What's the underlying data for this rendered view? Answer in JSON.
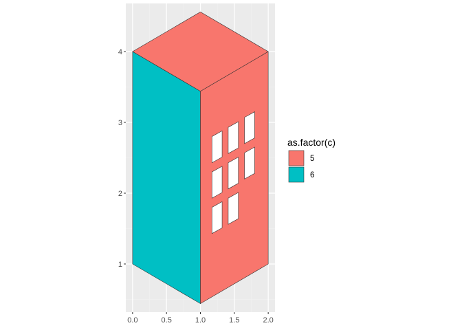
{
  "chart_data": {
    "type": "polygon",
    "title": "",
    "xlabel": "",
    "ylabel": "",
    "xlim": [
      -0.1,
      2.1
    ],
    "ylim": [
      0.32,
      4.68
    ],
    "grid": true,
    "x_ticks": [
      {
        "value": 0.0,
        "label": "0.0"
      },
      {
        "value": 0.5,
        "label": "0.5"
      },
      {
        "value": 1.0,
        "label": "1.0"
      },
      {
        "value": 1.5,
        "label": "1.5"
      },
      {
        "value": 2.0,
        "label": "2.0"
      }
    ],
    "y_ticks": [
      {
        "value": 1,
        "label": "1"
      },
      {
        "value": 2,
        "label": "2"
      },
      {
        "value": 3,
        "label": "3"
      },
      {
        "value": 4,
        "label": "4"
      }
    ],
    "legend": {
      "title": "as.factor(c)",
      "placement": "right",
      "entries": [
        {
          "label": "5",
          "color": "#F8766D"
        },
        {
          "label": "6",
          "color": "#00BFC4"
        }
      ]
    },
    "polygons": [
      {
        "group": "6",
        "fill": "#00BFC4",
        "points": [
          [
            0,
            1
          ],
          [
            0,
            4
          ],
          [
            1,
            3.44
          ],
          [
            1,
            0.44
          ]
        ]
      },
      {
        "group": "5",
        "fill": "#F8766D",
        "points": [
          [
            1,
            0.44
          ],
          [
            1,
            3.44
          ],
          [
            2,
            4
          ],
          [
            2,
            1
          ]
        ]
      },
      {
        "group": "5",
        "fill": "#F8766D",
        "points": [
          [
            0,
            4
          ],
          [
            1,
            4.56
          ],
          [
            2,
            4
          ],
          [
            1,
            3.44
          ]
        ]
      },
      {
        "group": "window",
        "fill": "#FFFFFF",
        "points": [
          [
            1.17,
            2.43
          ],
          [
            1.17,
            2.8
          ],
          [
            1.32,
            2.88
          ],
          [
            1.32,
            2.51
          ]
        ]
      },
      {
        "group": "window",
        "fill": "#FFFFFF",
        "points": [
          [
            1.41,
            2.56
          ],
          [
            1.41,
            2.93
          ],
          [
            1.56,
            3.01
          ],
          [
            1.56,
            2.64
          ]
        ]
      },
      {
        "group": "window",
        "fill": "#FFFFFF",
        "points": [
          [
            1.65,
            2.7
          ],
          [
            1.65,
            3.07
          ],
          [
            1.8,
            3.15
          ],
          [
            1.8,
            2.78
          ]
        ]
      },
      {
        "group": "window",
        "fill": "#FFFFFF",
        "points": [
          [
            1.17,
            1.93
          ],
          [
            1.17,
            2.3
          ],
          [
            1.32,
            2.38
          ],
          [
            1.32,
            2.01
          ]
        ]
      },
      {
        "group": "window",
        "fill": "#FFFFFF",
        "points": [
          [
            1.41,
            2.06
          ],
          [
            1.41,
            2.43
          ],
          [
            1.56,
            2.51
          ],
          [
            1.56,
            2.14
          ]
        ]
      },
      {
        "group": "window",
        "fill": "#FFFFFF",
        "points": [
          [
            1.65,
            2.2
          ],
          [
            1.65,
            2.57
          ],
          [
            1.8,
            2.65
          ],
          [
            1.8,
            2.28
          ]
        ]
      },
      {
        "group": "window",
        "fill": "#FFFFFF",
        "points": [
          [
            1.17,
            1.43
          ],
          [
            1.17,
            1.8
          ],
          [
            1.32,
            1.88
          ],
          [
            1.32,
            1.51
          ]
        ]
      },
      {
        "group": "window",
        "fill": "#FFFFFF",
        "points": [
          [
            1.41,
            1.56
          ],
          [
            1.41,
            1.93
          ],
          [
            1.56,
            2.01
          ],
          [
            1.56,
            1.64
          ]
        ]
      }
    ]
  },
  "colors": {
    "panel_background": "#EBEBEB",
    "grid_major": "#FFFFFF",
    "grid_minor": "#F2F2F2",
    "outline": "#333333"
  }
}
